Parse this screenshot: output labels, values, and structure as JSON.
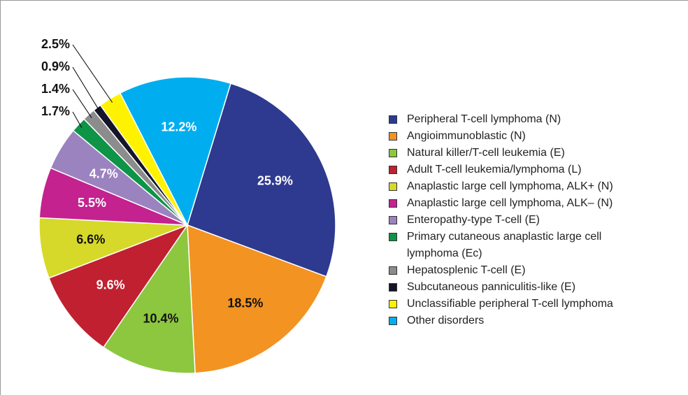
{
  "chart_data": {
    "type": "pie",
    "categories": [
      "Peripheral T-cell lymphoma (N)",
      "Angioimmunoblastic (N)",
      "Natural killer/T-cell leukemia (E)",
      "Adult T-cell leukemia/lymphoma (L)",
      "Anaplastic large cell lymphoma, ALK+ (N)",
      "Anaplastic large cell lymphoma, ALK– (N)",
      "Enteropathy-type T-cell (E)",
      "Primary cutaneous anaplastic large cell lymphoma (Ec)",
      "Hepatosplenic T-cell (E)",
      "Subcutaneous panniculitis-like (E)",
      "Unclassifiable peripheral T-cell lymphoma",
      "Other disorders"
    ],
    "values": [
      25.9,
      18.5,
      10.4,
      9.6,
      6.6,
      5.5,
      4.7,
      1.7,
      1.4,
      0.9,
      2.5,
      12.2
    ],
    "value_labels": [
      "25.9%",
      "18.5%",
      "10.4%",
      "9.6%",
      "6.6%",
      "5.5%",
      "4.7%",
      "1.7%",
      "1.4%",
      "0.9%",
      "2.5%",
      "12.2%"
    ],
    "colors": [
      "#2e3a8f",
      "#f39322",
      "#8dc63f",
      "#c0202f",
      "#d7d92a",
      "#c3228f",
      "#9b83bf",
      "#0d9447",
      "#8c8c8c",
      "#15152a",
      "#fff200",
      "#00aeef"
    ]
  }
}
